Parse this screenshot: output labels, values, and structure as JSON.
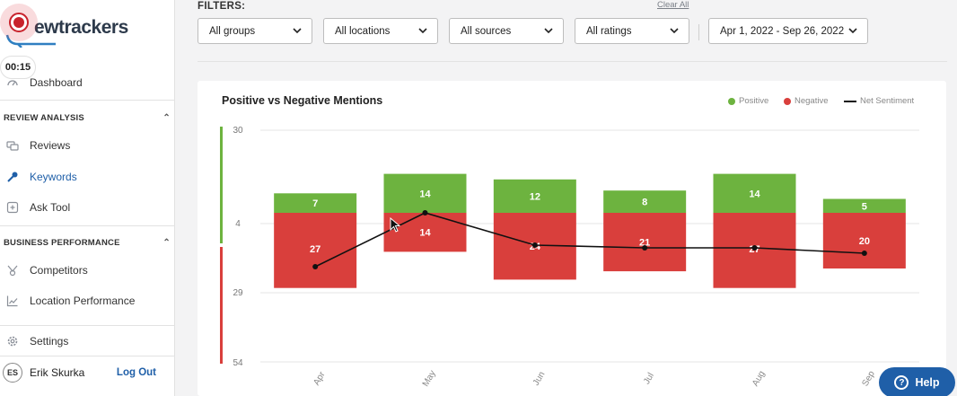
{
  "app": {
    "logo_text": "ewtrackers",
    "recording_timer": "00:15"
  },
  "sidebar": {
    "dashboard": "Dashboard",
    "sections": [
      {
        "title": "REVIEW ANALYSIS",
        "items": [
          "Reviews",
          "Keywords",
          "Ask Tool"
        ]
      },
      {
        "title": "BUSINESS PERFORMANCE",
        "items": [
          "Competitors",
          "Location Performance"
        ]
      }
    ],
    "settings": "Settings",
    "user": {
      "initials": "ES",
      "name": "Erik Skurka",
      "logout": "Log Out"
    },
    "active_item": "Keywords"
  },
  "filters": {
    "label": "FILTERS:",
    "clear_all": "Clear All",
    "groups": "All groups",
    "locations": "All locations",
    "sources": "All sources",
    "ratings": "All ratings",
    "date_range": "Apr 1, 2022 - Sep 26, 2022"
  },
  "help": {
    "label": "Help"
  },
  "colors": {
    "positive": "#6db33f",
    "negative": "#d93f3c",
    "net": "#111111",
    "accent": "#1f5fa8"
  },
  "chart_data": {
    "type": "bar",
    "title": "Positive vs Negative Mentions",
    "legend": [
      "Positive",
      "Negative",
      "Net Sentiment"
    ],
    "categories": [
      "Apr",
      "May",
      "Jun",
      "Jul",
      "Aug",
      "Sep"
    ],
    "series": [
      {
        "name": "Positive",
        "values": [
          7,
          14,
          12,
          8,
          14,
          5
        ]
      },
      {
        "name": "Negative",
        "values": [
          27,
          14,
          24,
          21,
          27,
          20
        ]
      },
      {
        "name": "Net Sentiment",
        "values": [
          -20,
          0,
          -12,
          -13,
          -13,
          -15
        ]
      }
    ],
    "positive_axis": {
      "ticks": [
        30,
        4
      ],
      "label_top": "30",
      "label_mid": "4"
    },
    "negative_axis": {
      "ticks": [
        29,
        54
      ],
      "label_mid": "29",
      "label_bot": "54"
    },
    "bar_labels": {
      "positive": [
        "7",
        "14",
        "12",
        "8",
        "14",
        "5"
      ],
      "negative": [
        "27",
        "14",
        "24",
        "21",
        "27",
        "20"
      ]
    }
  }
}
